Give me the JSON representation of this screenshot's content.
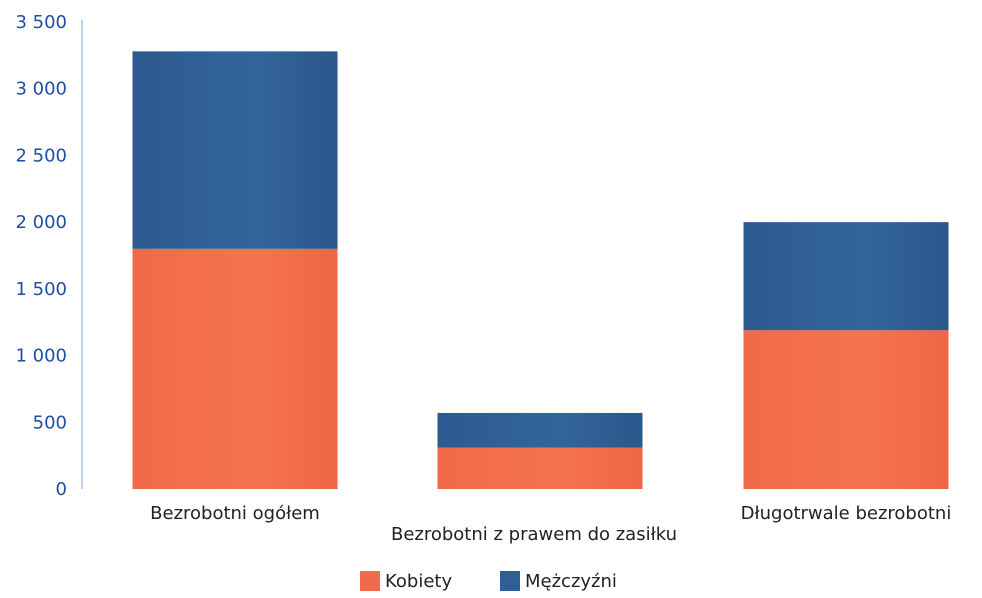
{
  "chart_data": {
    "type": "bar",
    "stacked": true,
    "categories": [
      "Bezrobotni ogółem",
      "Bezrobotni z prawem do zasiłku",
      "Długotrwale bezrobotni"
    ],
    "series": [
      {
        "name": "Kobiety",
        "values": [
          1800,
          310,
          1190
        ],
        "color": "#f26a4b"
      },
      {
        "name": "Mężczyźni",
        "values": [
          1480,
          260,
          810
        ],
        "color": "#2f5f95"
      }
    ],
    "y_ticks": [
      "0",
      "500",
      "1 000",
      "1 500",
      "2 000",
      "2 500",
      "3 000",
      "3 500"
    ],
    "ylim": [
      0,
      3500
    ],
    "grid": false,
    "legend_position": "bottom",
    "tick_label_color": "#1f4fa0",
    "axis_color": "#a9c4e8"
  }
}
